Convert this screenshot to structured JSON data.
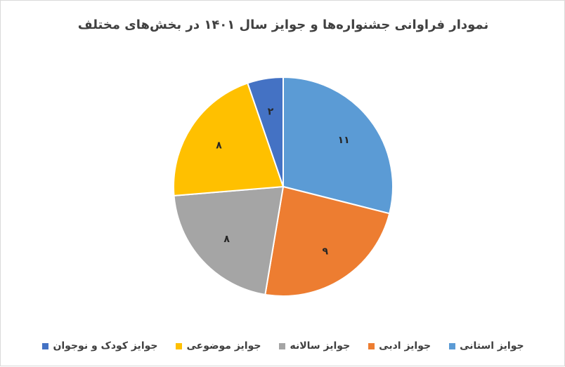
{
  "chart_data": {
    "type": "pie",
    "title": "نمودار فراوانی جشنواره‌ها و جوایز سال ۱۴۰۱ در بخش‌های مختلف",
    "categories": [
      "جوایز استانی",
      "جوایز ادبی",
      "جوایز سالانه",
      "جوایز موضوعی",
      "جوایز کودک و نوجوان"
    ],
    "values": [
      11,
      9,
      8,
      8,
      2
    ],
    "data_labels": [
      "۱۱",
      "۹",
      "۸",
      "۸",
      "۲"
    ],
    "colors": [
      "#5b9bd5",
      "#ed7d31",
      "#a5a5a5",
      "#ffc000",
      "#4472c4"
    ],
    "legend_position": "bottom"
  }
}
